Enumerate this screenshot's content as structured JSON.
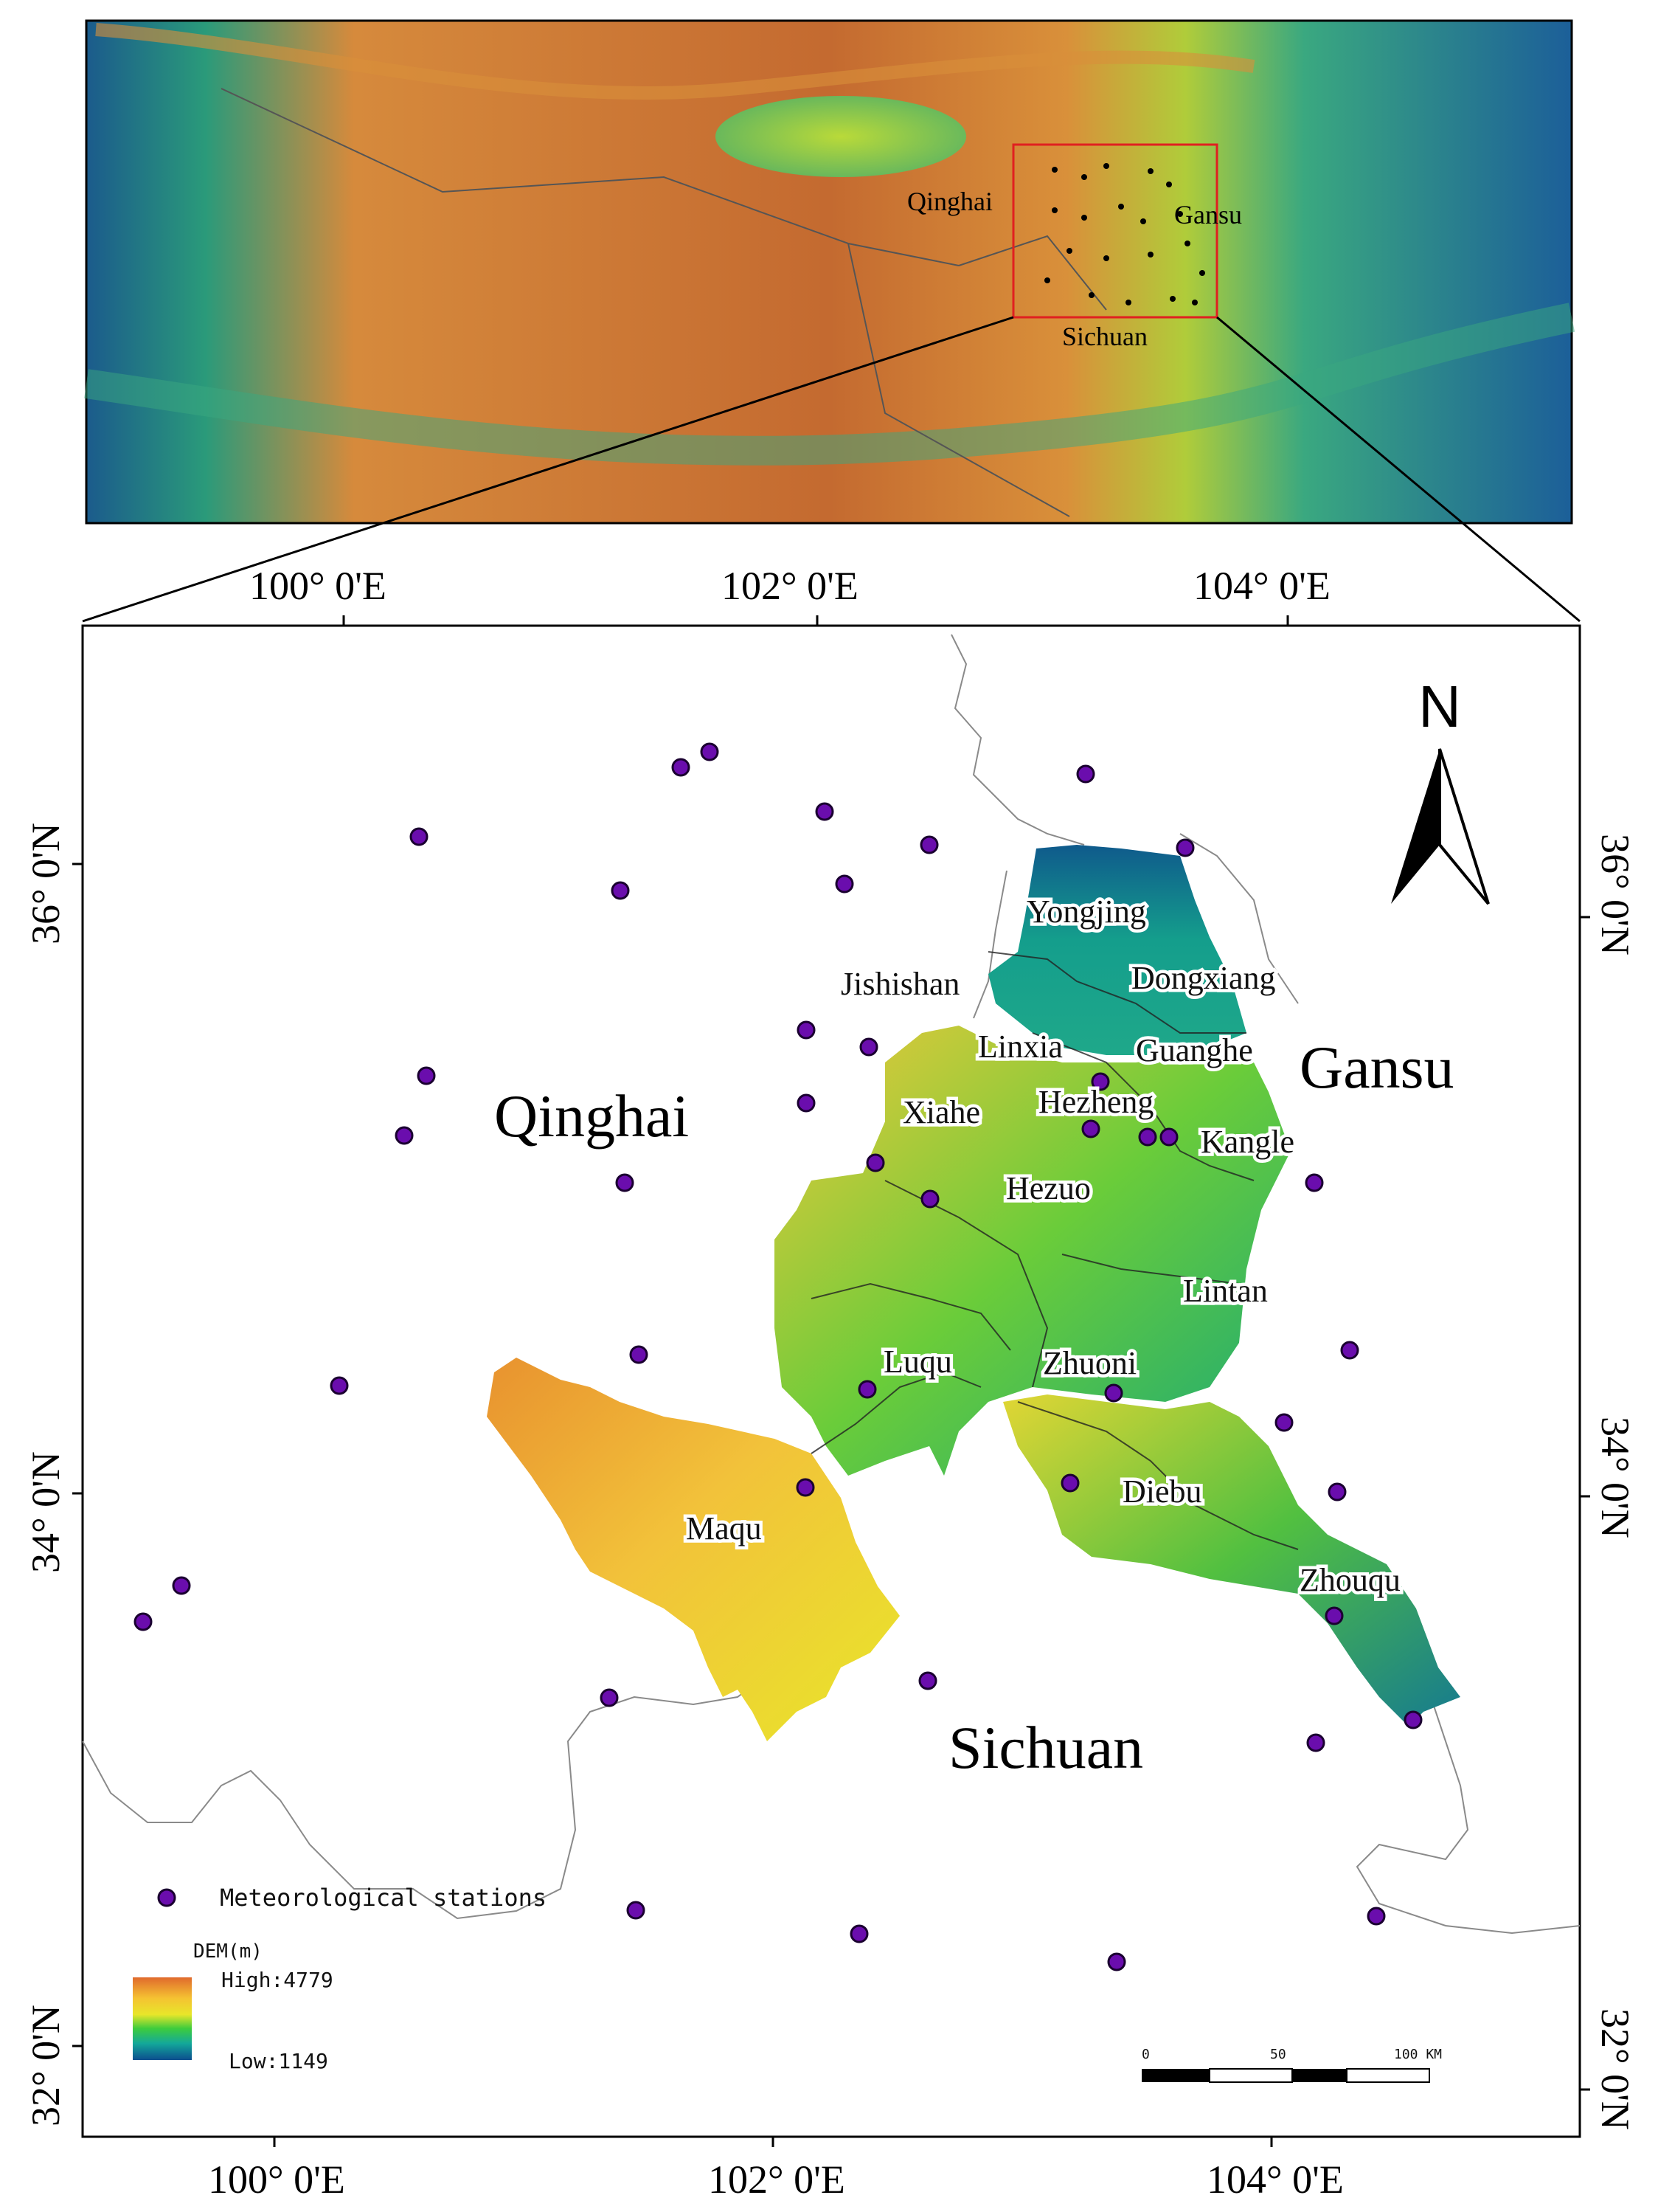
{
  "inset": {
    "labels": {
      "qinghai": "Qinghai",
      "gansu": "Gansu",
      "sichuan": "Sichuan"
    }
  },
  "main": {
    "top_ticks": [
      "100° 0'E",
      "102° 0'E",
      "104° 0'E"
    ],
    "bottom_ticks": [
      "100° 0'E",
      "102° 0'E",
      "104° 0'E"
    ],
    "left_ticks": [
      "36° 0'N",
      "34° 0'N",
      "32° 0'N"
    ],
    "right_ticks": [
      "36° 0'N",
      "34° 0'N",
      "32° 0'N"
    ],
    "provinces": {
      "qinghai": "Qinghai",
      "gansu": "Gansu",
      "sichuan": "Sichuan"
    },
    "counties": [
      "Yongjing",
      "Jishishan",
      "Dongxiang",
      "Linxia",
      "Guanghe",
      "Hezheng",
      "Xiahe",
      "Kangle",
      "Hezuo",
      "Lintan",
      "Luqu",
      "Zhuoni",
      "Maqu",
      "Diebu",
      "Zhouqu"
    ],
    "north_label": "N"
  },
  "legend": {
    "stations_label": "Meteorological stations",
    "dem_title": "DEM(m)",
    "dem_high": "High:4779",
    "dem_low": "Low:1149",
    "dem_max_m": 4779,
    "dem_min_m": 1149,
    "dem_colors": [
      "#e06a2c",
      "#f5c232",
      "#e8e62a",
      "#3dcc3d",
      "#13a89a",
      "#0c4e8e"
    ]
  },
  "scale_bar": {
    "ticks": [
      "0",
      "50",
      "100 KM"
    ]
  }
}
